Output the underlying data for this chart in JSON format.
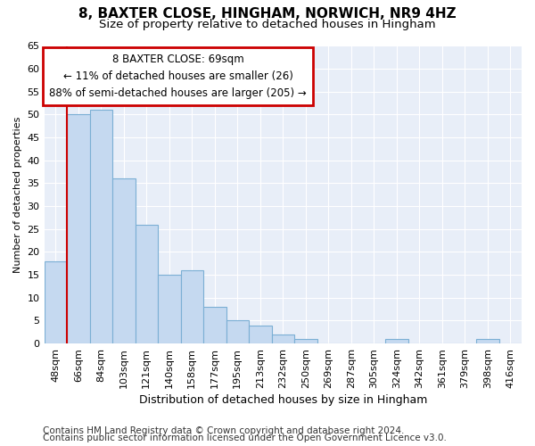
{
  "title_line1": "8, BAXTER CLOSE, HINGHAM, NORWICH, NR9 4HZ",
  "title_line2": "Size of property relative to detached houses in Hingham",
  "xlabel": "Distribution of detached houses by size in Hingham",
  "ylabel": "Number of detached properties",
  "categories": [
    "48sqm",
    "66sqm",
    "84sqm",
    "103sqm",
    "121sqm",
    "140sqm",
    "158sqm",
    "177sqm",
    "195sqm",
    "213sqm",
    "232sqm",
    "250sqm",
    "269sqm",
    "287sqm",
    "305sqm",
    "324sqm",
    "342sqm",
    "361sqm",
    "379sqm",
    "398sqm",
    "416sqm"
  ],
  "values": [
    18,
    50,
    51,
    36,
    26,
    15,
    16,
    8,
    5,
    4,
    2,
    1,
    0,
    0,
    0,
    1,
    0,
    0,
    0,
    1,
    0
  ],
  "bar_color": "#c5d9f0",
  "bar_edge_color": "#7bafd4",
  "redline_color": "#cc0000",
  "annotation_text": "8 BAXTER CLOSE: 69sqm\n← 11% of detached houses are smaller (26)\n88% of semi-detached houses are larger (205) →",
  "annotation_box_color": "white",
  "annotation_box_edge_color": "#cc0000",
  "ylim": [
    0,
    65
  ],
  "yticks": [
    0,
    5,
    10,
    15,
    20,
    25,
    30,
    35,
    40,
    45,
    50,
    55,
    60,
    65
  ],
  "footer_line1": "Contains HM Land Registry data © Crown copyright and database right 2024.",
  "footer_line2": "Contains public sector information licensed under the Open Government Licence v3.0.",
  "background_color": "#ffffff",
  "plot_background_color": "#e8eef8",
  "grid_color": "#ffffff",
  "title1_fontsize": 11,
  "title2_fontsize": 9.5,
  "xlabel_fontsize": 9,
  "ylabel_fontsize": 8,
  "tick_fontsize": 8,
  "annotation_fontsize": 8.5,
  "footer_fontsize": 7.5
}
